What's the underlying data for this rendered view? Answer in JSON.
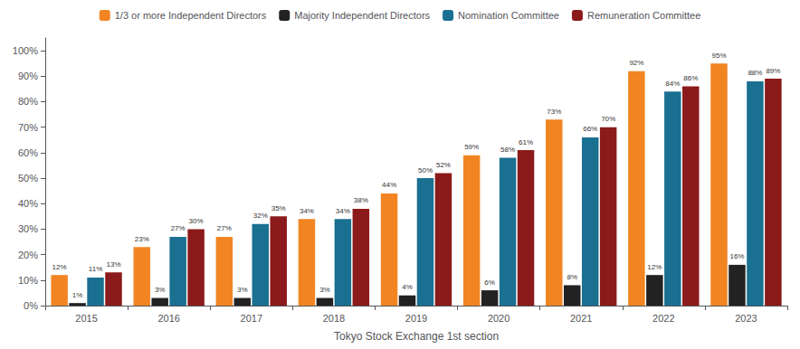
{
  "chart_data": {
    "type": "bar",
    "xlabel": "Tokyo Stock Exchange 1st section",
    "categories": [
      "2015",
      "2016",
      "2017",
      "2018",
      "2019",
      "2020",
      "2021",
      "2022",
      "2023"
    ],
    "series": [
      {
        "name": "1/3 or more Independent Directors",
        "color": "#F28522",
        "values": [
          12,
          23,
          27,
          34,
          44,
          59,
          73,
          92,
          95
        ],
        "value_labels": [
          "12%",
          "23%",
          "27%",
          "34%",
          "44%",
          "59%",
          "73%",
          "92%",
          "95%"
        ]
      },
      {
        "name": "Majority Independent Directors",
        "color": "#222222",
        "values": [
          1,
          3,
          3,
          3,
          4,
          6,
          8,
          12,
          16
        ],
        "value_labels": [
          "1%",
          "3%",
          "3%",
          "3%",
          "4%",
          "6%",
          "8%",
          "12%",
          "16%"
        ]
      },
      {
        "name": "Nomination Committee",
        "color": "#1A7090",
        "values": [
          11,
          27,
          32,
          34,
          50,
          58,
          66,
          84,
          88
        ],
        "value_labels": [
          "11%",
          "27%",
          "32%",
          "34%",
          "50%",
          "58%",
          "66%",
          "84%",
          "88%"
        ]
      },
      {
        "name": "Remuneration Committee",
        "color": "#8B1A1A",
        "values": [
          13,
          30,
          35,
          38,
          52,
          61,
          70,
          86,
          89
        ],
        "value_labels": [
          "13%",
          "30%",
          "35%",
          "38%",
          "52%",
          "61%",
          "70%",
          "86%",
          "89%"
        ]
      }
    ],
    "ylim": [
      0,
      105
    ],
    "yticks": [
      {
        "value": 0,
        "label": "0%"
      },
      {
        "value": 10,
        "label": "10%"
      },
      {
        "value": 20,
        "label": "20%"
      },
      {
        "value": 30,
        "label": "30%"
      },
      {
        "value": 40,
        "label": "40%"
      },
      {
        "value": 50,
        "label": "50%"
      },
      {
        "value": 60,
        "label": "60%"
      },
      {
        "value": 70,
        "label": "70%"
      },
      {
        "value": 80,
        "label": "80%"
      },
      {
        "value": 90,
        "label": "90%"
      },
      {
        "value": 100,
        "label": "100%"
      }
    ],
    "grid": false,
    "legend": "top",
    "data_labels": true
  }
}
